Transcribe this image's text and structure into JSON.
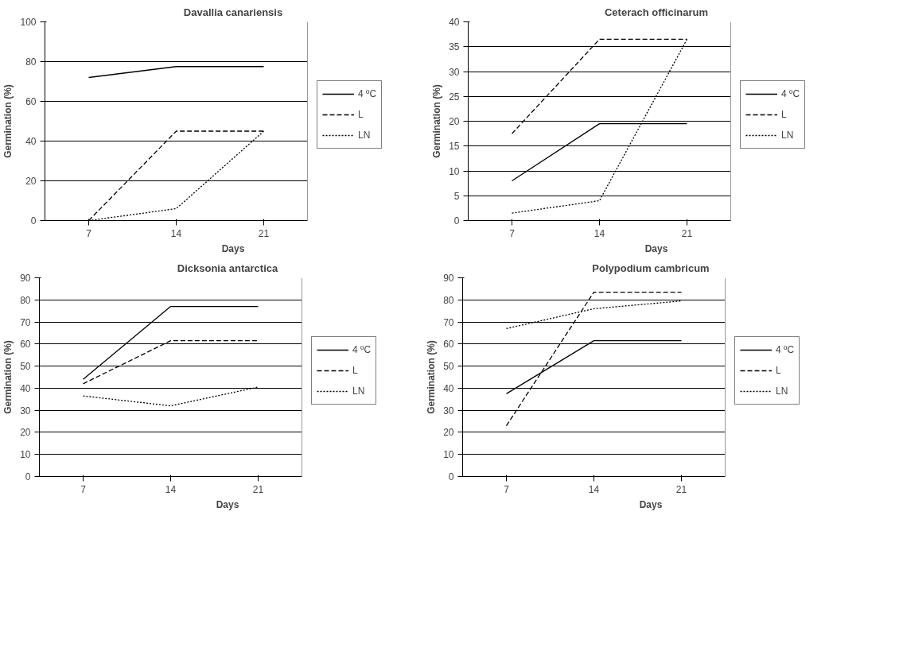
{
  "chart_data": [
    {
      "type": "line",
      "title": "Davallia canariensis",
      "xlabel": "Days",
      "ylabel": "Germination (%)",
      "categories": [
        "7",
        "14",
        "21"
      ],
      "ylim": [
        0,
        100
      ],
      "yticks": [
        0,
        20,
        40,
        60,
        80,
        100
      ],
      "grid": "y",
      "legend": "right",
      "series": [
        {
          "name": "4 ºC",
          "color": "#000000",
          "line_style": "solid",
          "values": [
            72,
            77.5,
            77.5
          ]
        },
        {
          "name": "L",
          "color": "#000000",
          "line_style": "dashed",
          "values": [
            0,
            45,
            45
          ]
        },
        {
          "name": "LN",
          "color": "#000000",
          "line_style": "dotted",
          "values": [
            0,
            6,
            45
          ]
        }
      ]
    },
    {
      "type": "line",
      "title": "Ceterach officinarum",
      "xlabel": "Days",
      "ylabel": "Germination (%)",
      "categories": [
        "7",
        "14",
        "21"
      ],
      "ylim": [
        0,
        40
      ],
      "yticks": [
        0,
        5,
        10,
        15,
        20,
        25,
        30,
        35,
        40
      ],
      "grid": "y",
      "legend": "right",
      "series": [
        {
          "name": "4 ºC",
          "color": "#000000",
          "line_style": "solid",
          "values": [
            8,
            19.5,
            19.5
          ]
        },
        {
          "name": "L",
          "color": "#000000",
          "line_style": "dashed",
          "values": [
            17.5,
            36.5,
            36.5
          ]
        },
        {
          "name": "LN",
          "color": "#000000",
          "line_style": "dotted",
          "values": [
            1.5,
            4,
            36.5
          ]
        }
      ]
    },
    {
      "type": "line",
      "title": "Dicksonia antarctica",
      "xlabel": "Days",
      "ylabel": "Germination (%)",
      "categories": [
        "7",
        "14",
        "21"
      ],
      "ylim": [
        0,
        90
      ],
      "yticks": [
        0,
        10,
        20,
        30,
        40,
        50,
        60,
        70,
        80,
        90
      ],
      "grid": "y",
      "legend": "right",
      "series": [
        {
          "name": "4 ºC",
          "color": "#000000",
          "line_style": "solid",
          "values": [
            44,
            77,
            77
          ]
        },
        {
          "name": "L",
          "color": "#000000",
          "line_style": "dashed",
          "values": [
            42,
            61.5,
            61.5
          ]
        },
        {
          "name": "LN",
          "color": "#000000",
          "line_style": "dotted",
          "values": [
            36.5,
            32,
            40.5
          ]
        }
      ]
    },
    {
      "type": "line",
      "title": "Polypodium cambricum",
      "xlabel": "Days",
      "ylabel": "Germination (%)",
      "categories": [
        "7",
        "14",
        "21"
      ],
      "ylim": [
        0,
        90
      ],
      "yticks": [
        0,
        10,
        20,
        30,
        40,
        50,
        60,
        70,
        80,
        90
      ],
      "grid": "y",
      "legend": "right",
      "series": [
        {
          "name": "4 ºC",
          "color": "#000000",
          "line_style": "solid",
          "values": [
            37.5,
            61.5,
            61.5
          ]
        },
        {
          "name": "L",
          "color": "#000000",
          "line_style": "dashed",
          "values": [
            23,
            83.5,
            83.5
          ]
        },
        {
          "name": "LN",
          "color": "#000000",
          "line_style": "dotted",
          "values": [
            67,
            76,
            79.5
          ]
        }
      ]
    }
  ]
}
